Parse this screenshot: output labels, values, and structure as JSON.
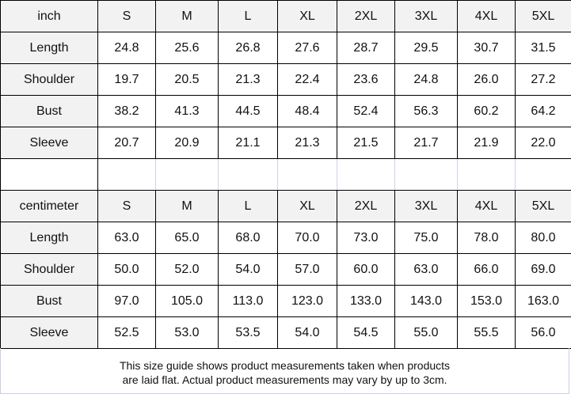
{
  "inch_table": {
    "unit_label": "inch",
    "sizes": [
      "S",
      "M",
      "L",
      "XL",
      "2XL",
      "3XL",
      "4XL",
      "5XL"
    ],
    "rows": [
      {
        "label": "Length",
        "values": [
          "24.8",
          "25.6",
          "26.8",
          "27.6",
          "28.7",
          "29.5",
          "30.7",
          "31.5"
        ]
      },
      {
        "label": "Shoulder",
        "values": [
          "19.7",
          "20.5",
          "21.3",
          "22.4",
          "23.6",
          "24.8",
          "26.0",
          "27.2"
        ]
      },
      {
        "label": "Bust",
        "values": [
          "38.2",
          "41.3",
          "44.5",
          "48.4",
          "52.4",
          "56.3",
          "60.2",
          "64.2"
        ]
      },
      {
        "label": "Sleeve",
        "values": [
          "20.7",
          "20.9",
          "21.1",
          "21.3",
          "21.5",
          "21.7",
          "21.9",
          "22.0"
        ]
      }
    ]
  },
  "cm_table": {
    "unit_label": "centimeter",
    "sizes": [
      "S",
      "M",
      "L",
      "XL",
      "2XL",
      "3XL",
      "4XL",
      "5XL"
    ],
    "rows": [
      {
        "label": "Length",
        "values": [
          "63.0",
          "65.0",
          "68.0",
          "70.0",
          "73.0",
          "75.0",
          "78.0",
          "80.0"
        ]
      },
      {
        "label": "Shoulder",
        "values": [
          "50.0",
          "52.0",
          "54.0",
          "57.0",
          "60.0",
          "63.0",
          "66.0",
          "69.0"
        ]
      },
      {
        "label": "Bust",
        "values": [
          "97.0",
          "105.0",
          "113.0",
          "123.0",
          "133.0",
          "143.0",
          "153.0",
          "163.0"
        ]
      },
      {
        "label": "Sleeve",
        "values": [
          "52.5",
          "53.0",
          "53.5",
          "54.0",
          "54.5",
          "55.0",
          "55.5",
          "56.0"
        ]
      }
    ]
  },
  "footer": {
    "line1": "This size guide shows product measurements taken when products",
    "line2": "are laid flat. Actual product measurements may vary by up to 3cm."
  },
  "colors": {
    "header_bg": "#f2f2f2",
    "border": "#000000"
  }
}
